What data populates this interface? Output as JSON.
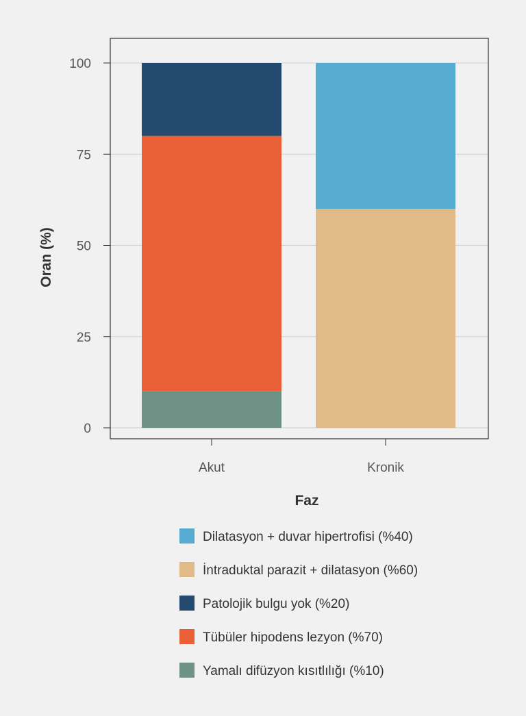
{
  "chart_data": {
    "type": "bar",
    "stacked": true,
    "title": "",
    "xlabel": "Faz",
    "ylabel": "Oran (%)",
    "ylim": [
      0,
      100
    ],
    "yticks": [
      0,
      25,
      50,
      75,
      100
    ],
    "grid": true,
    "legend_position": "bottom",
    "categories": [
      "Akut",
      "Kronik"
    ],
    "series": [
      {
        "name": "Dilatasyon + duvar hipertrofisi (%40)",
        "color": "#55abd0",
        "values": [
          0,
          40
        ]
      },
      {
        "name": "İntraduktal parazit + dilatasyon (%60)",
        "color": "#e0bb87",
        "values": [
          0,
          60
        ]
      },
      {
        "name": "Patolojik bulgu yok (%20)",
        "color": "#254a6f",
        "values": [
          20,
          0
        ]
      },
      {
        "name": "Tübüler hipodens lezyon (%70)",
        "color": "#e95f36",
        "values": [
          70,
          0
        ]
      },
      {
        "name": "Yamalı difüzyon kısıtlılığı (%10)",
        "color": "#6e9285",
        "values": [
          10,
          0
        ]
      }
    ],
    "stack_order": [
      4,
      3,
      2,
      1,
      0
    ]
  }
}
